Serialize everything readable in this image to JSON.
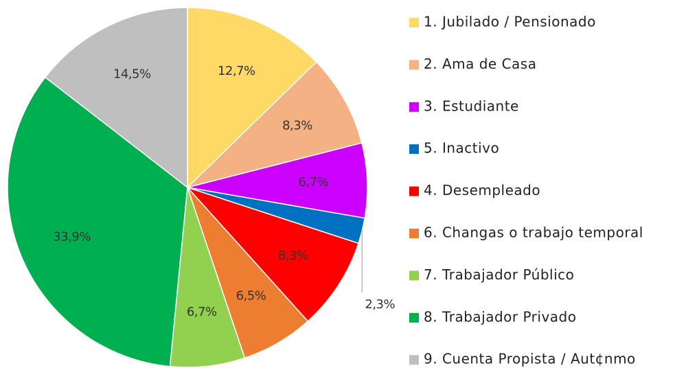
{
  "chart_data": {
    "type": "pie",
    "categories": [
      "1. Jubilado / Pensionado",
      "2. Ama de Casa",
      "3. Estudiante",
      "5. Inactivo",
      "4. Desempleado",
      "6. Changas o trabajo temporal",
      "7. Trabajador Público",
      "8. Trabajador Privado",
      "9. Cuenta Propista / Aut¢nmo"
    ],
    "values": [
      12.7,
      8.3,
      6.7,
      2.3,
      8.3,
      6.5,
      6.7,
      33.9,
      14.5
    ],
    "value_labels": [
      "12,7%",
      "8,3%",
      "6,7%",
      "2,3%",
      "8,3%",
      "6,5%",
      "6,7%",
      "33,9%",
      "14,5%"
    ],
    "colors": [
      "#ffd966",
      "#f4b183",
      "#cc00ff",
      "#0070c0",
      "#ff0000",
      "#ed7d31",
      "#92d050",
      "#00b050",
      "#bfbfbf"
    ],
    "legend": "right"
  }
}
